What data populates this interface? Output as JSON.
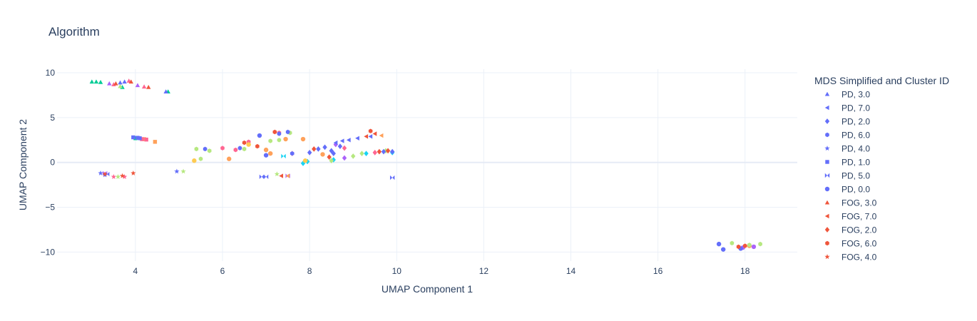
{
  "chart_data": {
    "type": "scatter",
    "title": "Algorithm",
    "xlabel": "UMAP Component 1",
    "ylabel": "UMAP Component 2",
    "xlim": [
      2.2,
      19.2
    ],
    "ylim": [
      -11,
      10.4
    ],
    "xticks": [
      4,
      6,
      8,
      10,
      12,
      14,
      16,
      18
    ],
    "yticks": [
      10,
      5,
      0,
      -5,
      -10
    ],
    "ytick_labels": [
      "10",
      "5",
      "0",
      "−5",
      "−10"
    ],
    "grid": true,
    "legend_title": "MDS Simplified and Cluster ID",
    "legend_placement": "right",
    "series": [
      {
        "name": "PD, 3.0",
        "symbol": "triangle-up",
        "color": "#636efa",
        "points": [
          [
            3.65,
            8.9
          ],
          [
            3.75,
            9.0
          ],
          [
            4.7,
            7.9
          ]
        ]
      },
      {
        "name": "PD, 7.0",
        "symbol": "triangle-left",
        "color": "#636efa",
        "points": [
          [
            8.6,
            2.2
          ],
          [
            8.75,
            2.4
          ],
          [
            8.9,
            2.5
          ],
          [
            9.1,
            2.7
          ],
          [
            9.4,
            2.9
          ]
        ]
      },
      {
        "name": "PD, 2.0",
        "symbol": "diamond",
        "color": "#636efa",
        "points": [
          [
            8.0,
            1.1
          ],
          [
            8.2,
            1.5
          ],
          [
            8.35,
            1.7
          ],
          [
            8.5,
            1.3
          ],
          [
            8.55,
            1.0
          ],
          [
            8.7,
            1.8
          ],
          [
            9.7,
            1.2
          ],
          [
            9.9,
            1.2
          ]
        ]
      },
      {
        "name": "PD, 6.0",
        "symbol": "hexagon",
        "color": "#636efa",
        "points": [
          [
            5.6,
            1.5
          ],
          [
            6.4,
            1.6
          ],
          [
            7.3,
            3.2
          ],
          [
            7.5,
            3.4
          ],
          [
            7.6,
            1.0
          ]
        ]
      },
      {
        "name": "PD, 4.0",
        "symbol": "star",
        "color": "#636efa",
        "points": [
          [
            3.2,
            -1.2
          ],
          [
            3.3,
            -1.4
          ],
          [
            4.95,
            -1.0
          ]
        ]
      },
      {
        "name": "PD, 1.0",
        "symbol": "square",
        "color": "#636efa",
        "points": [
          [
            3.95,
            2.8
          ],
          [
            4.05,
            2.75
          ],
          [
            4.1,
            2.7
          ]
        ]
      },
      {
        "name": "PD, 5.0",
        "symbol": "bowtie",
        "color": "#636efa",
        "points": [
          [
            3.35,
            -1.3
          ],
          [
            6.9,
            -1.6
          ],
          [
            7.0,
            -1.6
          ],
          [
            9.9,
            -1.7
          ]
        ]
      },
      {
        "name": "PD, 0.0",
        "symbol": "circle",
        "color": "#636efa",
        "points": [
          [
            6.85,
            3.0
          ],
          [
            7.0,
            0.8
          ],
          [
            17.4,
            -9.1
          ],
          [
            17.5,
            -9.7
          ],
          [
            17.9,
            -9.6
          ]
        ]
      },
      {
        "name": "FOG, 3.0",
        "symbol": "triangle-up",
        "color": "#ef553b",
        "points": [
          [
            3.55,
            8.8
          ],
          [
            3.9,
            9.0
          ],
          [
            4.3,
            8.4
          ]
        ]
      },
      {
        "name": "FOG, 7.0",
        "symbol": "triangle-left",
        "color": "#ef553b",
        "points": [
          [
            9.3,
            2.9
          ],
          [
            9.5,
            3.2
          ],
          [
            7.35,
            -1.5
          ]
        ]
      },
      {
        "name": "FOG, 2.0",
        "symbol": "diamond",
        "color": "#ef553b",
        "points": [
          [
            8.1,
            1.5
          ],
          [
            9.6,
            1.2
          ],
          [
            8.45,
            0.6
          ],
          [
            9.8,
            1.3
          ]
        ]
      },
      {
        "name": "FOG, 6.0",
        "symbol": "hexagon",
        "color": "#ef553b",
        "points": [
          [
            6.5,
            2.2
          ],
          [
            6.8,
            1.8
          ],
          [
            7.2,
            3.4
          ],
          [
            9.4,
            3.5
          ],
          [
            17.85,
            -9.4
          ],
          [
            18.0,
            -9.3
          ]
        ]
      },
      {
        "name": "FOG, 4.0",
        "symbol": "star",
        "color": "#ef553b",
        "points": [
          [
            3.95,
            -1.2
          ],
          [
            3.3,
            -1.3
          ],
          [
            3.7,
            -1.5
          ]
        ]
      }
    ],
    "unlisted_points": [
      {
        "color": "#00cc96",
        "symbol": "triangle-up",
        "points": [
          [
            3.0,
            9.0
          ],
          [
            3.1,
            9.0
          ],
          [
            3.2,
            8.95
          ],
          [
            4.75,
            7.9
          ],
          [
            3.7,
            8.4
          ]
        ]
      },
      {
        "color": "#00cc96",
        "symbol": "square",
        "points": [
          [
            4.0,
            2.7
          ]
        ]
      },
      {
        "color": "#ab63fa",
        "symbol": "bowtie",
        "points": [
          [
            3.3,
            -1.2
          ],
          [
            7.5,
            -1.5
          ]
        ]
      },
      {
        "color": "#ab63fa",
        "symbol": "diamond",
        "points": [
          [
            8.6,
            2.0
          ],
          [
            8.8,
            0.5
          ]
        ]
      },
      {
        "color": "#ab63fa",
        "symbol": "circle",
        "points": [
          [
            17.95,
            -9.5
          ],
          [
            18.2,
            -9.4
          ]
        ]
      },
      {
        "color": "#ab63fa",
        "symbol": "triangle-up",
        "points": [
          [
            3.4,
            8.8
          ],
          [
            4.05,
            8.6
          ]
        ]
      },
      {
        "color": "#ffa15a",
        "symbol": "square",
        "points": [
          [
            4.2,
            2.6
          ],
          [
            4.45,
            2.3
          ]
        ]
      },
      {
        "color": "#ffa15a",
        "symbol": "circle",
        "points": [
          [
            6.15,
            0.4
          ],
          [
            7.0,
            1.4
          ],
          [
            7.1,
            1.0
          ],
          [
            7.45,
            2.6
          ],
          [
            7.85,
            2.6
          ],
          [
            8.3,
            0.9
          ]
        ]
      },
      {
        "color": "#ffa15a",
        "symbol": "triangle-left",
        "points": [
          [
            9.65,
            3.0
          ],
          [
            7.5,
            -1.5
          ]
        ]
      },
      {
        "color": "#ffa15a",
        "symbol": "circle",
        "points": [
          [
            18.1,
            -9.3
          ]
        ]
      },
      {
        "color": "#19d3f3",
        "symbol": "diamond",
        "points": [
          [
            7.85,
            -0.1
          ],
          [
            7.95,
            0.1
          ],
          [
            8.55,
            0.3
          ],
          [
            9.3,
            1.0
          ],
          [
            9.9,
            1.1
          ]
        ]
      },
      {
        "color": "#19d3f3",
        "symbol": "bowtie",
        "points": [
          [
            7.4,
            0.7
          ]
        ]
      },
      {
        "color": "#ff6692",
        "symbol": "diamond",
        "points": [
          [
            7.6,
            1.0
          ],
          [
            8.8,
            1.6
          ],
          [
            9.5,
            1.1
          ]
        ]
      },
      {
        "color": "#ff6692",
        "symbol": "hexagon",
        "points": [
          [
            6.0,
            1.6
          ],
          [
            6.3,
            1.4
          ],
          [
            6.6,
            2.3
          ],
          [
            7.3,
            3.3
          ]
        ]
      },
      {
        "color": "#ff6692",
        "symbol": "triangle-up",
        "points": [
          [
            3.5,
            8.7
          ],
          [
            3.85,
            9.1
          ],
          [
            4.2,
            8.45
          ]
        ]
      },
      {
        "color": "#ff6692",
        "symbol": "square",
        "points": [
          [
            4.15,
            2.6
          ],
          [
            4.25,
            2.55
          ]
        ]
      },
      {
        "color": "#ff6692",
        "symbol": "star",
        "points": [
          [
            3.5,
            -1.6
          ],
          [
            3.75,
            -1.6
          ]
        ]
      },
      {
        "color": "#b6e880",
        "symbol": "hexagon",
        "points": [
          [
            5.4,
            1.5
          ],
          [
            5.5,
            0.4
          ],
          [
            5.7,
            1.3
          ],
          [
            6.5,
            1.5
          ],
          [
            7.1,
            2.4
          ],
          [
            7.3,
            2.5
          ],
          [
            7.55,
            3.3
          ],
          [
            17.7,
            -9.0
          ],
          [
            18.1,
            -9.2
          ],
          [
            18.35,
            -9.1
          ]
        ]
      },
      {
        "color": "#b6e880",
        "symbol": "diamond",
        "points": [
          [
            8.5,
            0.2
          ],
          [
            9.0,
            0.7
          ],
          [
            9.2,
            1.0
          ],
          [
            9.75,
            1.3
          ]
        ]
      },
      {
        "color": "#b6e880",
        "symbol": "star",
        "points": [
          [
            3.6,
            -1.6
          ],
          [
            5.1,
            -1.0
          ],
          [
            7.25,
            -1.3
          ]
        ]
      },
      {
        "color": "#b6e880",
        "symbol": "triangle-up",
        "points": [
          [
            3.65,
            8.5
          ]
        ]
      },
      {
        "color": "#fecb52",
        "symbol": "circle",
        "points": [
          [
            5.35,
            0.2
          ],
          [
            6.6,
            2.0
          ],
          [
            7.9,
            0.2
          ]
        ]
      }
    ]
  }
}
